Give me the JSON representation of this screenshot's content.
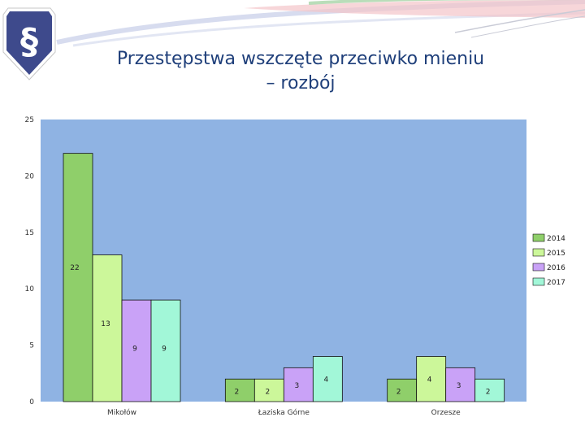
{
  "page": {
    "title_line1": "Przestępstwa wszczęte przeciwko mieniu",
    "title_line2": "– rozbój",
    "logo_symbol": "§",
    "logo_color": "#3e4a8c"
  },
  "chart_data": {
    "type": "bar",
    "categories": [
      "Mikołów",
      "Łaziska Górne",
      "Orzesze"
    ],
    "series": [
      {
        "name": "2014",
        "color": "#8fcf6a",
        "values": [
          22,
          2,
          2
        ]
      },
      {
        "name": "2015",
        "color": "#ccf79a",
        "values": [
          13,
          2,
          4
        ]
      },
      {
        "name": "2016",
        "color": "#c9a2f7",
        "values": [
          9,
          3,
          3
        ]
      },
      {
        "name": "2017",
        "color": "#a2f7d8",
        "values": [
          9,
          4,
          2
        ]
      }
    ],
    "ylim": [
      0,
      25
    ],
    "yticks": [
      0,
      5,
      10,
      15,
      20,
      25
    ],
    "plot_background": "#8fb3e3",
    "legend_position": "right",
    "grid": false
  }
}
